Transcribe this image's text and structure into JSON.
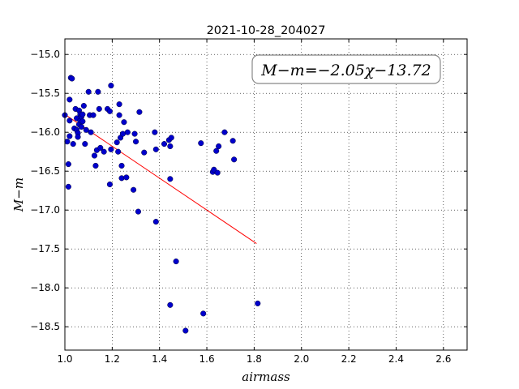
{
  "chart_data": {
    "type": "scatter",
    "title": "2021-10-28_204027",
    "xlabel": "airmass",
    "ylabel": "M−m",
    "xlim": [
      1.0,
      2.7
    ],
    "ylim": [
      -18.8,
      -14.8
    ],
    "xticks": [
      "1.0",
      "1.2",
      "1.4",
      "1.6",
      "1.8",
      "2.0",
      "2.2",
      "2.4",
      "2.6"
    ],
    "yticks": [
      "−15.0",
      "−15.5",
      "−16.0",
      "−16.5",
      "−17.0",
      "−17.5",
      "−18.0",
      "−18.5"
    ],
    "grid": true,
    "annotation": {
      "lhs": "M−m",
      "eq": "=",
      "rhs": "−2.05χ−13.72",
      "slope": -2.05,
      "intercept": -13.72
    },
    "fit_line": {
      "x_range": [
        1.0,
        1.81
      ],
      "color": "#ff0000"
    },
    "marker_color": "#0000cc",
    "points": [
      [
        1.0,
        -15.78
      ],
      [
        1.01,
        -16.12
      ],
      [
        1.015,
        -16.41
      ],
      [
        1.015,
        -16.7
      ],
      [
        1.02,
        -15.85
      ],
      [
        1.02,
        -16.05
      ],
      [
        1.02,
        -15.58
      ],
      [
        1.025,
        -15.3
      ],
      [
        1.03,
        -15.31
      ],
      [
        1.035,
        -16.15
      ],
      [
        1.04,
        -15.95
      ],
      [
        1.045,
        -15.7
      ],
      [
        1.05,
        -15.97
      ],
      [
        1.05,
        -15.82
      ],
      [
        1.055,
        -16.01
      ],
      [
        1.055,
        -16.06
      ],
      [
        1.06,
        -15.9
      ],
      [
        1.06,
        -15.72
      ],
      [
        1.065,
        -15.85
      ],
      [
        1.065,
        -15.77
      ],
      [
        1.07,
        -15.8
      ],
      [
        1.07,
        -15.93
      ],
      [
        1.075,
        -15.86
      ],
      [
        1.075,
        -15.77
      ],
      [
        1.08,
        -15.66
      ],
      [
        1.085,
        -16.15
      ],
      [
        1.09,
        -15.97
      ],
      [
        1.1,
        -15.48
      ],
      [
        1.105,
        -15.78
      ],
      [
        1.11,
        -16.0
      ],
      [
        1.12,
        -15.78
      ],
      [
        1.125,
        -16.3
      ],
      [
        1.13,
        -16.43
      ],
      [
        1.135,
        -16.23
      ],
      [
        1.14,
        -15.48
      ],
      [
        1.145,
        -15.7
      ],
      [
        1.15,
        -16.2
      ],
      [
        1.165,
        -16.25
      ],
      [
        1.18,
        -15.7
      ],
      [
        1.19,
        -15.73
      ],
      [
        1.19,
        -16.67
      ],
      [
        1.195,
        -15.4
      ],
      [
        1.195,
        -16.22
      ],
      [
        1.22,
        -16.13
      ],
      [
        1.225,
        -16.25
      ],
      [
        1.23,
        -15.64
      ],
      [
        1.23,
        -15.78
      ],
      [
        1.235,
        -16.07
      ],
      [
        1.24,
        -16.43
      ],
      [
        1.24,
        -16.59
      ],
      [
        1.245,
        -16.02
      ],
      [
        1.25,
        -15.87
      ],
      [
        1.26,
        -16.58
      ],
      [
        1.265,
        -16.0
      ],
      [
        1.29,
        -16.74
      ],
      [
        1.295,
        -16.02
      ],
      [
        1.3,
        -16.12
      ],
      [
        1.31,
        -17.02
      ],
      [
        1.315,
        -15.74
      ],
      [
        1.335,
        -16.26
      ],
      [
        1.38,
        -16.0
      ],
      [
        1.385,
        -17.15
      ],
      [
        1.385,
        -16.22
      ],
      [
        1.42,
        -16.15
      ],
      [
        1.44,
        -16.1
      ],
      [
        1.445,
        -16.6
      ],
      [
        1.445,
        -18.22
      ],
      [
        1.445,
        -16.18
      ],
      [
        1.45,
        -16.07
      ],
      [
        1.47,
        -17.66
      ],
      [
        1.51,
        -18.55
      ],
      [
        1.575,
        -16.14
      ],
      [
        1.585,
        -18.33
      ],
      [
        1.625,
        -16.51
      ],
      [
        1.63,
        -16.48
      ],
      [
        1.64,
        -16.24
      ],
      [
        1.645,
        -16.52
      ],
      [
        1.65,
        -16.18
      ],
      [
        1.675,
        -16.0
      ],
      [
        1.71,
        -16.11
      ],
      [
        1.715,
        -16.35
      ],
      [
        1.815,
        -18.2
      ]
    ]
  }
}
